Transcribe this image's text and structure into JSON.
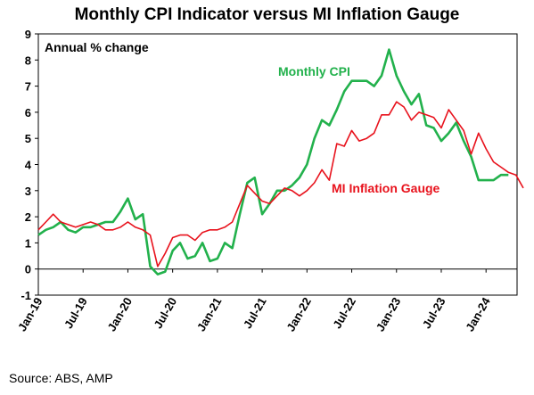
{
  "title": "Monthly CPI Indicator versus MI Inflation Gauge",
  "source": "Source: ABS, AMP",
  "colors": {
    "cpi": "#22b14c",
    "mi": "#e8121c"
  },
  "chart_data": {
    "type": "line",
    "title": "Monthly CPI Indicator versus MI Inflation Gauge",
    "ylabel": "Annual % change",
    "ylim": [
      -1,
      9
    ],
    "yticks": [
      -1,
      0,
      1,
      2,
      3,
      4,
      5,
      6,
      7,
      8,
      9
    ],
    "x_tick_labels": [
      "Jan-19",
      "Jul-19",
      "Jan-20",
      "Jul-20",
      "Jan-21",
      "Jul-21",
      "Jan-22",
      "Jul-22",
      "Jan-23",
      "Jul-23",
      "Jan-24"
    ],
    "grid": false,
    "legend": "inline annotations",
    "series": [
      {
        "name": "Monthly CPI",
        "color": "#22b14c",
        "start": "2019-01",
        "values": [
          1.3,
          1.5,
          1.6,
          1.8,
          1.5,
          1.4,
          1.6,
          1.6,
          1.7,
          1.8,
          1.8,
          2.2,
          2.7,
          1.9,
          2.1,
          0.1,
          -0.2,
          -0.1,
          0.7,
          1.0,
          0.4,
          0.5,
          1.0,
          0.3,
          0.4,
          1.0,
          0.8,
          2.1,
          3.3,
          3.5,
          2.1,
          2.5,
          3.0,
          3.0,
          3.2,
          3.5,
          4.0,
          5.0,
          5.7,
          5.5,
          6.1,
          6.8,
          7.2,
          7.2,
          7.2,
          7.0,
          7.4,
          8.4,
          7.4,
          6.8,
          6.3,
          6.7,
          5.5,
          5.4,
          4.9,
          5.2,
          5.6,
          4.9,
          4.3,
          3.4,
          3.4,
          3.4,
          3.6,
          3.6
        ]
      },
      {
        "name": "MI Inflation Gauge",
        "color": "#e8121c",
        "start": "2019-01",
        "values": [
          1.5,
          1.8,
          2.1,
          1.8,
          1.7,
          1.6,
          1.7,
          1.8,
          1.7,
          1.5,
          1.5,
          1.6,
          1.8,
          1.6,
          1.5,
          1.3,
          0.1,
          0.6,
          1.2,
          1.3,
          1.3,
          1.1,
          1.4,
          1.5,
          1.5,
          1.6,
          1.8,
          2.5,
          3.2,
          2.9,
          2.6,
          2.5,
          2.8,
          3.1,
          3.0,
          2.8,
          3.0,
          3.3,
          3.8,
          3.4,
          4.8,
          4.7,
          5.3,
          4.9,
          5.0,
          5.2,
          5.9,
          5.9,
          6.4,
          6.2,
          5.7,
          6.0,
          5.9,
          5.8,
          5.4,
          6.1,
          5.7,
          5.3,
          4.4,
          5.2,
          4.6,
          4.1,
          3.9,
          3.7,
          3.6,
          3.1
        ]
      }
    ],
    "annotations": [
      {
        "text": "Monthly CPI",
        "series": "Monthly CPI"
      },
      {
        "text": "MI Inflation Gauge",
        "series": "MI Inflation Gauge"
      }
    ]
  }
}
